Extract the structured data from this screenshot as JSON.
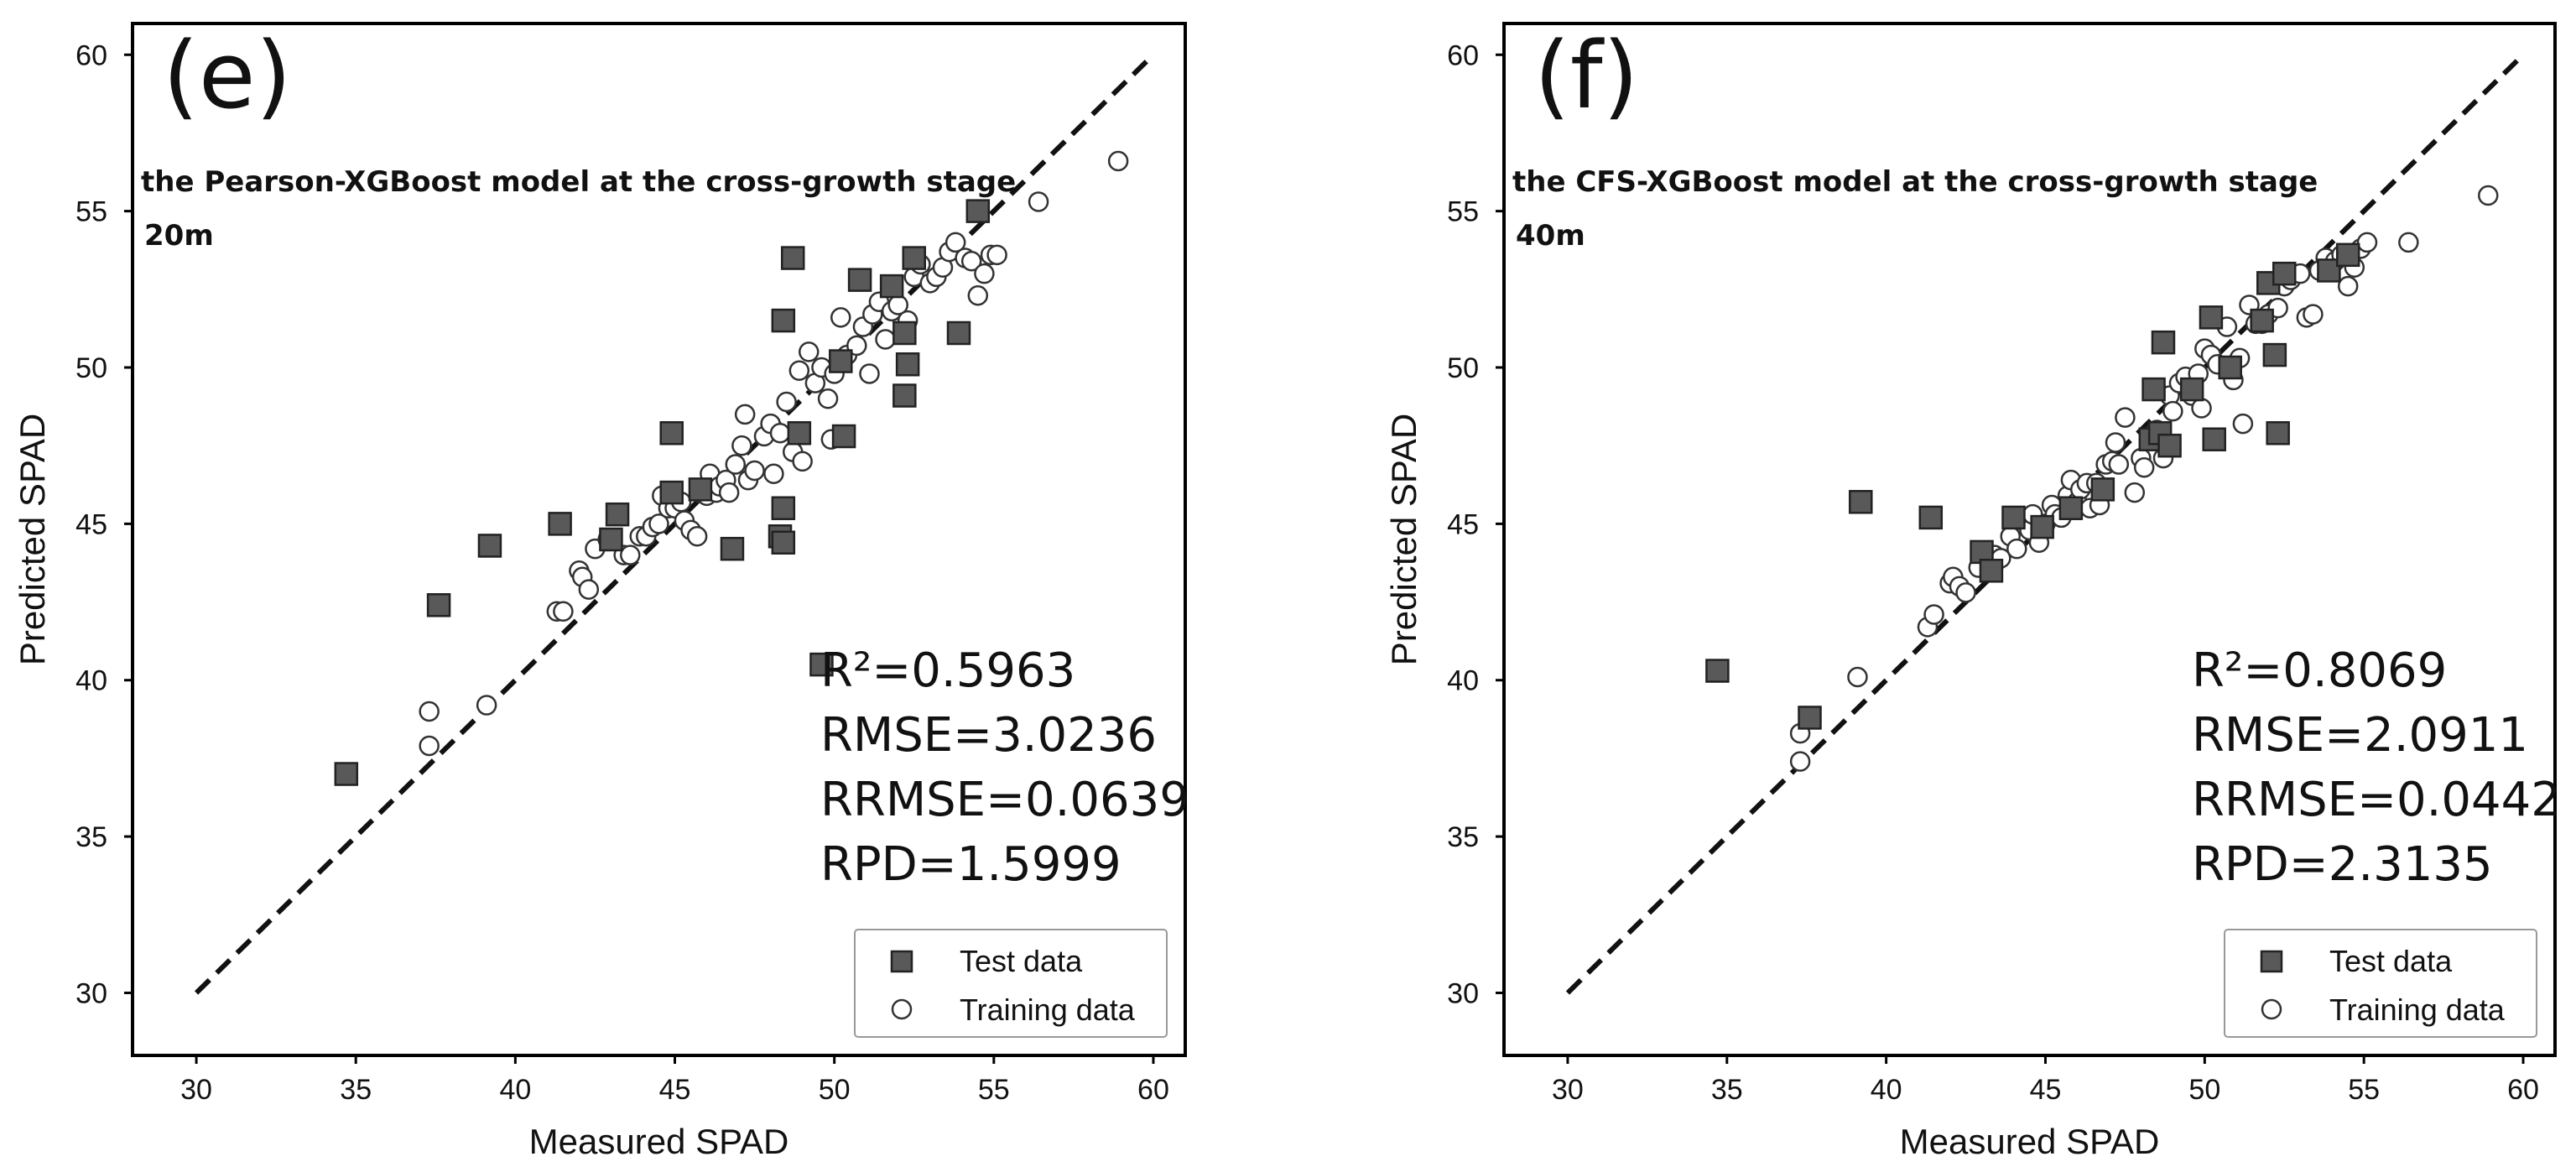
{
  "chart_data": [
    {
      "type": "scatter",
      "panel_letter": "(e)",
      "title": "the Pearson-XGBoost model at the cross-growth stage",
      "subtitle": "20m",
      "xlabel": "Measured SPAD",
      "ylabel": "Predicted SPAD",
      "xlim": [
        28,
        61
      ],
      "ylim": [
        28,
        61
      ],
      "xticks": [
        "30",
        "35",
        "40",
        "45",
        "50",
        "55",
        "60"
      ],
      "yticks": [
        "30",
        "35",
        "40",
        "45",
        "50",
        "55",
        "60"
      ],
      "reference_line": "1:1",
      "metrics": [
        "R²=0.5963",
        "RMSE=3.0236",
        "RRMSE=0.0639",
        "RPD=1.5999"
      ],
      "legend": [
        "Test data",
        "Training data"
      ],
      "legend_position": "lower-right",
      "series": [
        {
          "name": "Test data",
          "marker": "square",
          "points": [
            [
              34.7,
              37.0
            ],
            [
              37.6,
              42.4
            ],
            [
              39.2,
              44.3
            ],
            [
              41.4,
              45.0
            ],
            [
              43.2,
              45.3
            ],
            [
              43.0,
              44.5
            ],
            [
              44.9,
              47.9
            ],
            [
              44.9,
              46.0
            ],
            [
              45.8,
              46.1
            ],
            [
              46.8,
              44.2
            ],
            [
              48.3,
              44.6
            ],
            [
              48.4,
              44.4
            ],
            [
              48.4,
              45.5
            ],
            [
              48.4,
              51.5
            ],
            [
              48.7,
              53.5
            ],
            [
              48.9,
              47.9
            ],
            [
              49.6,
              40.5
            ],
            [
              50.2,
              50.2
            ],
            [
              50.3,
              47.8
            ],
            [
              50.8,
              52.8
            ],
            [
              51.8,
              52.6
            ],
            [
              52.2,
              51.1
            ],
            [
              52.2,
              49.1
            ],
            [
              52.3,
              50.1
            ],
            [
              52.5,
              53.5
            ],
            [
              53.9,
              51.1
            ],
            [
              54.5,
              55.0
            ]
          ]
        },
        {
          "name": "Training data",
          "marker": "circle",
          "points": [
            [
              37.3,
              39.0
            ],
            [
              37.3,
              37.9
            ],
            [
              39.1,
              39.2
            ],
            [
              41.3,
              42.2
            ],
            [
              41.5,
              42.2
            ],
            [
              42.0,
              43.5
            ],
            [
              42.1,
              43.3
            ],
            [
              42.3,
              42.9
            ],
            [
              42.5,
              44.2
            ],
            [
              42.9,
              44.5
            ],
            [
              43.4,
              44.0
            ],
            [
              43.6,
              44.0
            ],
            [
              43.9,
              44.6
            ],
            [
              44.1,
              44.6
            ],
            [
              44.3,
              44.9
            ],
            [
              44.5,
              45.0
            ],
            [
              44.6,
              45.9
            ],
            [
              44.8,
              45.5
            ],
            [
              45.0,
              45.5
            ],
            [
              45.2,
              45.7
            ],
            [
              45.3,
              45.1
            ],
            [
              45.5,
              44.8
            ],
            [
              45.7,
              44.6
            ],
            [
              45.8,
              46.0
            ],
            [
              46.0,
              45.9
            ],
            [
              46.1,
              46.6
            ],
            [
              46.3,
              46.0
            ],
            [
              46.4,
              46.2
            ],
            [
              46.6,
              46.4
            ],
            [
              46.7,
              46.0
            ],
            [
              46.9,
              46.9
            ],
            [
              47.1,
              47.5
            ],
            [
              47.2,
              48.5
            ],
            [
              47.3,
              46.4
            ],
            [
              47.5,
              46.7
            ],
            [
              47.8,
              47.8
            ],
            [
              48.0,
              48.2
            ],
            [
              48.1,
              46.6
            ],
            [
              48.3,
              47.9
            ],
            [
              48.5,
              48.9
            ],
            [
              48.7,
              47.3
            ],
            [
              48.9,
              49.9
            ],
            [
              49.0,
              47.0
            ],
            [
              49.2,
              50.5
            ],
            [
              49.4,
              49.5
            ],
            [
              49.6,
              50.0
            ],
            [
              49.8,
              49.0
            ],
            [
              49.9,
              47.7
            ],
            [
              50.0,
              49.8
            ],
            [
              50.2,
              51.6
            ],
            [
              50.4,
              50.4
            ],
            [
              50.7,
              50.7
            ],
            [
              50.9,
              51.3
            ],
            [
              51.1,
              49.8
            ],
            [
              51.2,
              51.7
            ],
            [
              51.4,
              52.1
            ],
            [
              51.6,
              50.9
            ],
            [
              51.8,
              51.8
            ],
            [
              52.0,
              52.0
            ],
            [
              52.3,
              51.5
            ],
            [
              52.5,
              52.9
            ],
            [
              52.7,
              53.3
            ],
            [
              53.0,
              52.7
            ],
            [
              53.2,
              52.9
            ],
            [
              53.4,
              53.2
            ],
            [
              53.6,
              53.7
            ],
            [
              53.8,
              54.0
            ],
            [
              54.1,
              53.5
            ],
            [
              54.3,
              53.4
            ],
            [
              54.5,
              52.3
            ],
            [
              54.7,
              53.0
            ],
            [
              54.9,
              53.6
            ],
            [
              55.1,
              53.6
            ],
            [
              56.4,
              55.3
            ],
            [
              58.9,
              56.6
            ]
          ]
        }
      ]
    },
    {
      "type": "scatter",
      "panel_letter": "(f)",
      "title": "the CFS-XGBoost model at the cross-growth stage",
      "subtitle": "40m",
      "xlabel": "Measured SPAD",
      "ylabel": "Predicted SPAD",
      "xlim": [
        28,
        61
      ],
      "ylim": [
        28,
        61
      ],
      "xticks": [
        "30",
        "35",
        "40",
        "45",
        "50",
        "55",
        "60"
      ],
      "yticks": [
        "30",
        "35",
        "40",
        "45",
        "50",
        "55",
        "60"
      ],
      "reference_line": "1:1",
      "metrics": [
        "R²=0.8069",
        "RMSE=2.0911",
        "RRMSE=0.0442",
        "RPD=2.3135"
      ],
      "legend": [
        "Test data",
        "Training data"
      ],
      "legend_position": "lower-right",
      "series": [
        {
          "name": "Test data",
          "marker": "square",
          "points": [
            [
              34.7,
              40.3
            ],
            [
              37.6,
              38.8
            ],
            [
              39.2,
              45.7
            ],
            [
              41.4,
              45.2
            ],
            [
              43.0,
              44.1
            ],
            [
              43.3,
              43.5
            ],
            [
              44.0,
              45.2
            ],
            [
              44.9,
              44.9
            ],
            [
              45.8,
              45.5
            ],
            [
              46.8,
              46.1
            ],
            [
              48.3,
              47.7
            ],
            [
              48.4,
              49.3
            ],
            [
              48.6,
              47.9
            ],
            [
              48.7,
              50.8
            ],
            [
              48.9,
              47.5
            ],
            [
              49.6,
              49.3
            ],
            [
              50.2,
              51.6
            ],
            [
              50.3,
              47.7
            ],
            [
              50.8,
              50.0
            ],
            [
              51.8,
              51.5
            ],
            [
              52.0,
              52.7
            ],
            [
              52.2,
              50.4
            ],
            [
              52.3,
              47.9
            ],
            [
              52.5,
              53.0
            ],
            [
              53.9,
              53.1
            ],
            [
              54.5,
              53.6
            ]
          ]
        },
        {
          "name": "Training data",
          "marker": "circle",
          "points": [
            [
              37.3,
              38.3
            ],
            [
              37.3,
              37.4
            ],
            [
              39.1,
              40.1
            ],
            [
              41.3,
              41.7
            ],
            [
              41.5,
              42.1
            ],
            [
              42.0,
              43.1
            ],
            [
              42.1,
              43.3
            ],
            [
              42.3,
              43.0
            ],
            [
              42.5,
              42.8
            ],
            [
              42.9,
              43.6
            ],
            [
              43.4,
              44.0
            ],
            [
              43.6,
              43.9
            ],
            [
              43.9,
              44.6
            ],
            [
              44.1,
              44.2
            ],
            [
              44.3,
              45.1
            ],
            [
              44.5,
              44.8
            ],
            [
              44.6,
              45.3
            ],
            [
              44.8,
              44.4
            ],
            [
              45.0,
              45.0
            ],
            [
              45.2,
              45.6
            ],
            [
              45.3,
              45.3
            ],
            [
              45.5,
              45.2
            ],
            [
              45.7,
              45.9
            ],
            [
              45.8,
              46.4
            ],
            [
              46.0,
              45.7
            ],
            [
              46.1,
              46.1
            ],
            [
              46.3,
              46.3
            ],
            [
              46.4,
              45.5
            ],
            [
              46.6,
              46.3
            ],
            [
              46.7,
              45.6
            ],
            [
              46.9,
              46.9
            ],
            [
              47.1,
              47.0
            ],
            [
              47.2,
              47.6
            ],
            [
              47.3,
              46.9
            ],
            [
              47.5,
              48.4
            ],
            [
              47.8,
              46.0
            ],
            [
              48.0,
              47.1
            ],
            [
              48.1,
              46.8
            ],
            [
              48.3,
              47.8
            ],
            [
              48.5,
              48.0
            ],
            [
              48.7,
              47.1
            ],
            [
              48.9,
              49.1
            ],
            [
              49.0,
              48.6
            ],
            [
              49.2,
              49.5
            ],
            [
              49.4,
              49.7
            ],
            [
              49.6,
              49.1
            ],
            [
              49.8,
              49.8
            ],
            [
              49.9,
              48.7
            ],
            [
              50.0,
              50.6
            ],
            [
              50.2,
              50.4
            ],
            [
              50.4,
              50.1
            ],
            [
              50.7,
              51.3
            ],
            [
              50.9,
              49.6
            ],
            [
              51.1,
              50.3
            ],
            [
              51.2,
              48.2
            ],
            [
              51.4,
              52.0
            ],
            [
              51.6,
              51.4
            ],
            [
              51.8,
              51.4
            ],
            [
              52.0,
              51.7
            ],
            [
              52.3,
              51.9
            ],
            [
              52.5,
              52.6
            ],
            [
              52.7,
              52.8
            ],
            [
              53.0,
              53.0
            ],
            [
              53.2,
              51.6
            ],
            [
              53.4,
              51.7
            ],
            [
              53.6,
              53.1
            ],
            [
              53.8,
              53.5
            ],
            [
              54.1,
              53.4
            ],
            [
              54.3,
              53.6
            ],
            [
              54.5,
              52.6
            ],
            [
              54.7,
              53.2
            ],
            [
              54.9,
              53.8
            ],
            [
              55.1,
              54.0
            ],
            [
              56.4,
              54.0
            ],
            [
              58.9,
              55.5
            ]
          ]
        }
      ]
    }
  ]
}
